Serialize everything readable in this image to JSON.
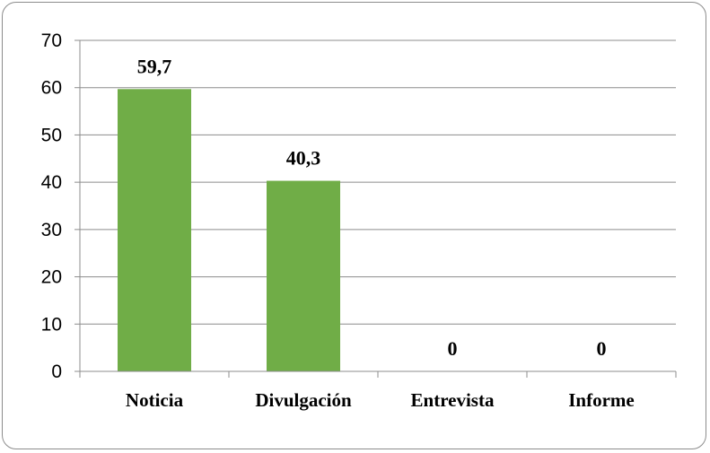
{
  "chart_data": {
    "type": "bar",
    "categories": [
      "Noticia",
      "Divulgación",
      "Entrevista",
      "Informe"
    ],
    "values": [
      59.7,
      40.3,
      0,
      0
    ],
    "value_labels": [
      "59,7",
      "40,3",
      "0",
      "0"
    ],
    "title": "",
    "xlabel": "",
    "ylabel": "",
    "ylim": [
      0,
      70
    ],
    "yticks": [
      0,
      10,
      20,
      30,
      40,
      50,
      60,
      70
    ],
    "grid": true,
    "legend": "none",
    "bar_color": "#70AD47"
  }
}
